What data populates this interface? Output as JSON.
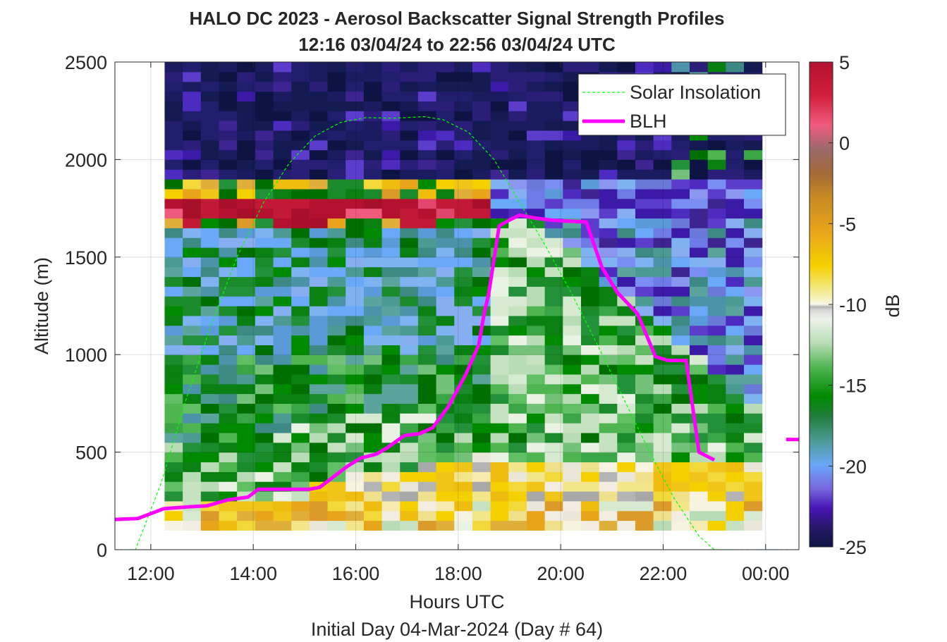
{
  "chart_data": {
    "type": "heatmap",
    "title": [
      "HALO DC 2023 - Aerosol Backscatter Signal Strength Profiles",
      "12:16 03/04/24 to 22:56 03/04/24  UTC"
    ],
    "xlabel": "Hours UTC",
    "xlabel2": "Initial Day 04-Mar-2024 (Day # 64)",
    "ylabel": "Altitude (m)",
    "xlim": [
      11.3,
      24.65
    ],
    "ylim": [
      0,
      2500
    ],
    "xticks": [
      12,
      14,
      16,
      18,
      20,
      22,
      24
    ],
    "xtick_labels": [
      "12:00",
      "14:00",
      "16:00",
      "18:00",
      "20:00",
      "22:00",
      "00:00"
    ],
    "yticks": [
      0,
      500,
      1000,
      1500,
      2000,
      2500
    ],
    "ytick_labels": [
      "0",
      "500",
      "1000",
      "1500",
      "2000",
      "2500"
    ],
    "grid": true,
    "colorbar": {
      "label": "dB",
      "range": [
        -25,
        5
      ],
      "ticks": [
        5,
        0,
        -5,
        -10,
        -15,
        -20,
        -25
      ],
      "tick_labels": [
        "5",
        "0",
        "-5",
        "-10",
        "-15",
        "-20",
        "-25"
      ]
    },
    "heatmap_extent": {
      "x": [
        12.27,
        23.93
      ],
      "y": [
        100,
        2500
      ]
    },
    "legend": {
      "placement": "top-right",
      "entries": [
        "Solar Insolation",
        "BLH"
      ]
    },
    "series": [
      {
        "name": "BLH",
        "color": "#ff00ff",
        "x": [
          11.3,
          11.75,
          12.25,
          12.75,
          13.1,
          13.5,
          13.9,
          14.1,
          14.4,
          14.7,
          15.1,
          15.3,
          15.6,
          15.85,
          16.1,
          16.4,
          16.6,
          16.95,
          17.25,
          17.5,
          17.8,
          18.15,
          18.4,
          18.5,
          18.6,
          18.8,
          19.0,
          19.2,
          19.5,
          19.8,
          20.1,
          20.5,
          20.8,
          21.1,
          21.5,
          21.85,
          22.1,
          22.45,
          22.7,
          23.0
        ],
        "y": [
          155,
          160,
          210,
          220,
          225,
          255,
          270,
          310,
          310,
          310,
          310,
          320,
          380,
          430,
          470,
          490,
          520,
          585,
          595,
          625,
          730,
          900,
          1050,
          1200,
          1320,
          1660,
          1690,
          1715,
          1700,
          1690,
          1685,
          1680,
          1450,
          1320,
          1210,
          990,
          970,
          970,
          500,
          460
        ]
      },
      {
        "name": "BLH",
        "color": "#ff00ff",
        "x": [
          24.4,
          24.65
        ],
        "y": [
          565,
          565
        ]
      },
      {
        "name": "Solar Insolation",
        "color": "#00ff00",
        "style": "dashed",
        "x": [
          11.3,
          11.7,
          12.2,
          12.7,
          13.2,
          13.7,
          14.2,
          14.7,
          15.2,
          15.7,
          16.2,
          16.7,
          17.0,
          17.33,
          17.7,
          18.2,
          18.7,
          19.2,
          19.7,
          20.2,
          20.7,
          21.2,
          21.7,
          22.2,
          22.7,
          23.0,
          23.5,
          24.0,
          24.65
        ],
        "y": [
          0,
          0,
          340,
          780,
          1170,
          1510,
          1780,
          1980,
          2120,
          2190,
          2215,
          2212,
          2215,
          2220,
          2205,
          2140,
          2000,
          1780,
          1560,
          1320,
          1060,
          790,
          520,
          270,
          70,
          0,
          0,
          0,
          0
        ]
      }
    ]
  }
}
